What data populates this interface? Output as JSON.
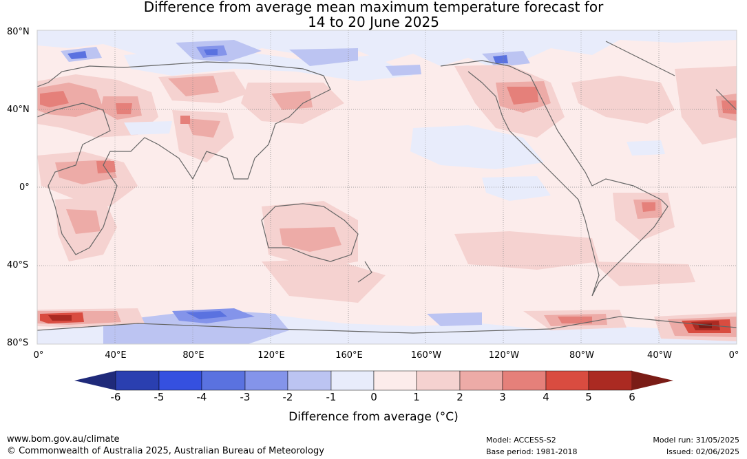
{
  "title": {
    "line1": "Difference from average mean maximum temperature forecast for",
    "line2": "14 to 20 June 2025"
  },
  "axes": {
    "lat_labels": [
      "80°N",
      "40°N",
      "0°",
      "40°S",
      "80°S"
    ],
    "lon_labels": [
      "0°",
      "40°E",
      "80°E",
      "120°E",
      "160°E",
      "160°W",
      "120°W",
      "80°W",
      "40°W",
      "0°"
    ]
  },
  "colorbar": {
    "ticks": [
      "-6",
      "-5",
      "-4",
      "-3",
      "-2",
      "-1",
      "0",
      "1",
      "2",
      "3",
      "4",
      "5",
      "6"
    ],
    "colors": [
      "#1f2a7a",
      "#2a3fb0",
      "#3550e0",
      "#5a72e0",
      "#8494ea",
      "#bcc4f2",
      "#e8ecfb",
      "#fceceb",
      "#f5d2d0",
      "#edaba7",
      "#e5807a",
      "#d94c40",
      "#ab2a22",
      "#7a1c16"
    ],
    "label": "Difference from average (°C)"
  },
  "footer": {
    "site": "www.bom.gov.au/climate",
    "copyright": "© Commonwealth of Australia 2025, Australian Bureau of Meteorology",
    "model": "Model: ACCESS-S2",
    "base_period": "Base period: 1981-2018",
    "model_run": "Model run: 31/05/2025",
    "issued": "Issued: 02/06/2025"
  }
}
